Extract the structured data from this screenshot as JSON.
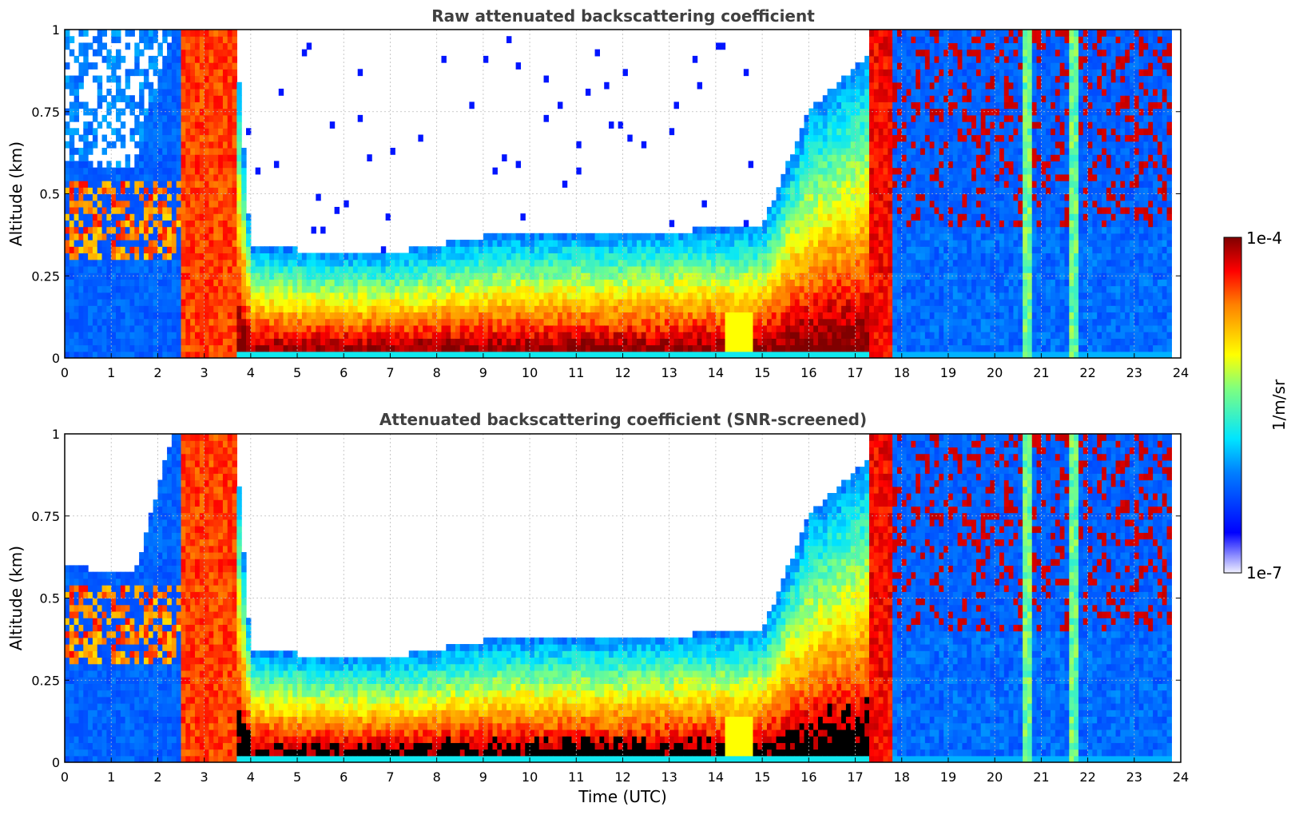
{
  "chart_data": [
    {
      "type": "heatmap",
      "title": "Raw attenuated backscattering coefficient",
      "xlabel": "",
      "ylabel": "Altitude (km)",
      "xlim": [
        0,
        24
      ],
      "ylim": [
        0,
        1
      ],
      "xticks": [
        "0",
        "1",
        "2",
        "3",
        "4",
        "5",
        "6",
        "7",
        "8",
        "9",
        "10",
        "11",
        "12",
        "13",
        "14",
        "15",
        "16",
        "17",
        "18",
        "19",
        "20",
        "21",
        "22",
        "23",
        "24"
      ],
      "yticks": [
        "0",
        "0.25",
        "0.5",
        "0.75",
        "1"
      ],
      "grid": true,
      "colormap": "jet",
      "screened": false
    },
    {
      "type": "heatmap",
      "title": "Attenuated backscattering coefficient (SNR-screened)",
      "xlabel": "Time (UTC)",
      "ylabel": "Altitude (km)",
      "xlim": [
        0,
        24
      ],
      "ylim": [
        0,
        1
      ],
      "xticks": [
        "0",
        "1",
        "2",
        "3",
        "4",
        "5",
        "6",
        "7",
        "8",
        "9",
        "10",
        "11",
        "12",
        "13",
        "14",
        "15",
        "16",
        "17",
        "18",
        "19",
        "20",
        "21",
        "22",
        "23",
        "24"
      ],
      "yticks": [
        "0",
        "0.25",
        "0.5",
        "0.75",
        "1"
      ],
      "grid": true,
      "colormap": "jet",
      "screened": true
    }
  ],
  "colorbar": {
    "label": "1/m/sr",
    "max_label": "1e-4",
    "min_label": "1e-7",
    "scale": "log"
  }
}
